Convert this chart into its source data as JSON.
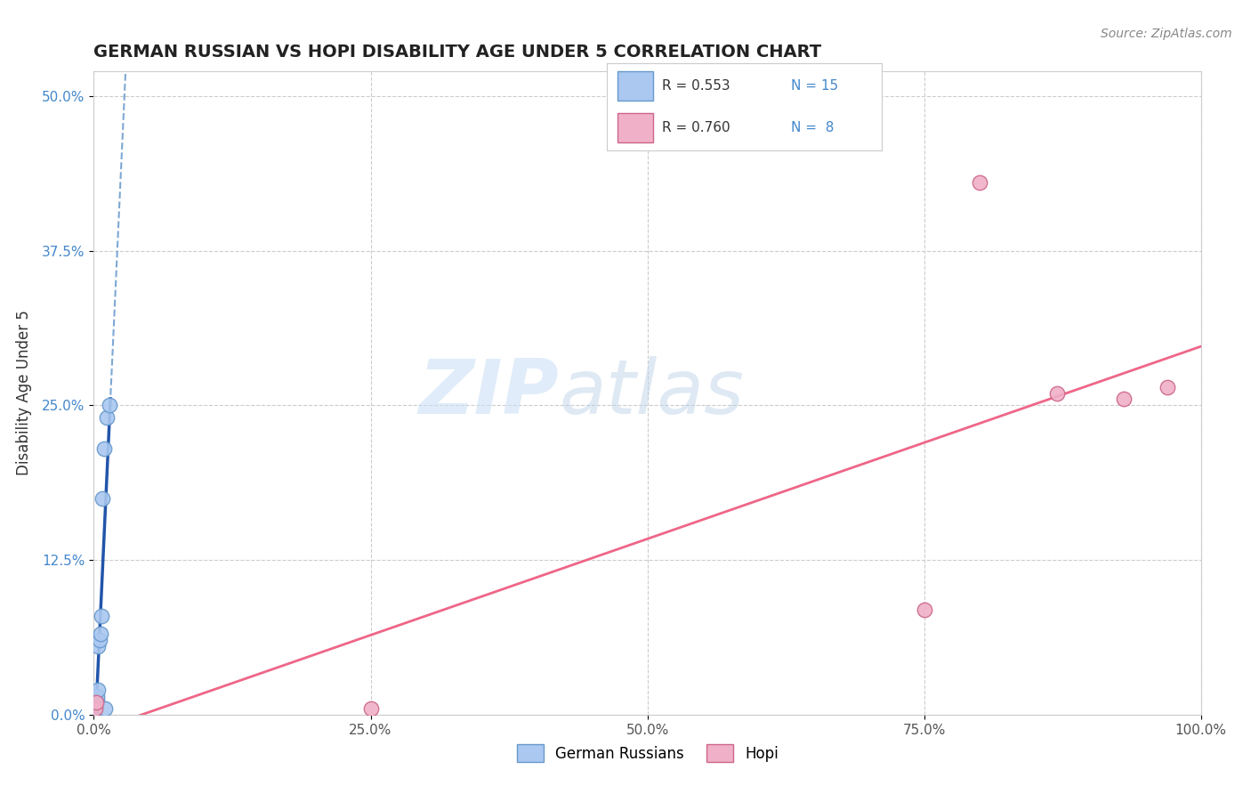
{
  "title": "GERMAN RUSSIAN VS HOPI DISABILITY AGE UNDER 5 CORRELATION CHART",
  "source": "Source: ZipAtlas.com",
  "ylabel": "Disability Age Under 5",
  "xlim": [
    0.0,
    1.0
  ],
  "ylim": [
    0.0,
    0.52
  ],
  "xticks": [
    0.0,
    0.25,
    0.5,
    0.75,
    1.0
  ],
  "xticklabels": [
    "0.0%",
    "25.0%",
    "50.0%",
    "75.0%",
    "100.0%"
  ],
  "yticks": [
    0.0,
    0.125,
    0.25,
    0.375,
    0.5
  ],
  "yticklabels": [
    "0.0%",
    "12.5%",
    "25.0%",
    "37.5%",
    "50.0%"
  ],
  "german_russian_x": [
    0.001,
    0.002,
    0.002,
    0.003,
    0.003,
    0.004,
    0.004,
    0.005,
    0.006,
    0.007,
    0.008,
    0.009,
    0.01,
    0.012,
    0.014
  ],
  "german_russian_y": [
    0.005,
    0.008,
    0.01,
    0.012,
    0.015,
    0.02,
    0.055,
    0.06,
    0.065,
    0.08,
    0.175,
    0.215,
    0.005,
    0.24,
    0.25
  ],
  "hopi_x": [
    0.001,
    0.002,
    0.25,
    0.75,
    0.8,
    0.87,
    0.93,
    0.97
  ],
  "hopi_y": [
    0.005,
    0.01,
    0.005,
    0.085,
    0.43,
    0.26,
    0.255,
    0.265
  ],
  "german_russian_color": "#aac8f0",
  "german_russian_edge_color": "#6699cc",
  "hopi_color": "#f0b0c8",
  "hopi_edge_color": "#cc6688",
  "blue_solid_color": "#2255aa",
  "blue_dash_color": "#6699cc",
  "pink_line_color": "#ee6688",
  "R_german": 0.553,
  "N_german": 15,
  "R_hopi": 0.76,
  "N_hopi": 8,
  "watermark_zip": "ZIP",
  "watermark_atlas": "atlas",
  "background_color": "#ffffff",
  "grid_color": "#cccccc",
  "tick_color": "#4488cc",
  "spine_color": "#cccccc"
}
